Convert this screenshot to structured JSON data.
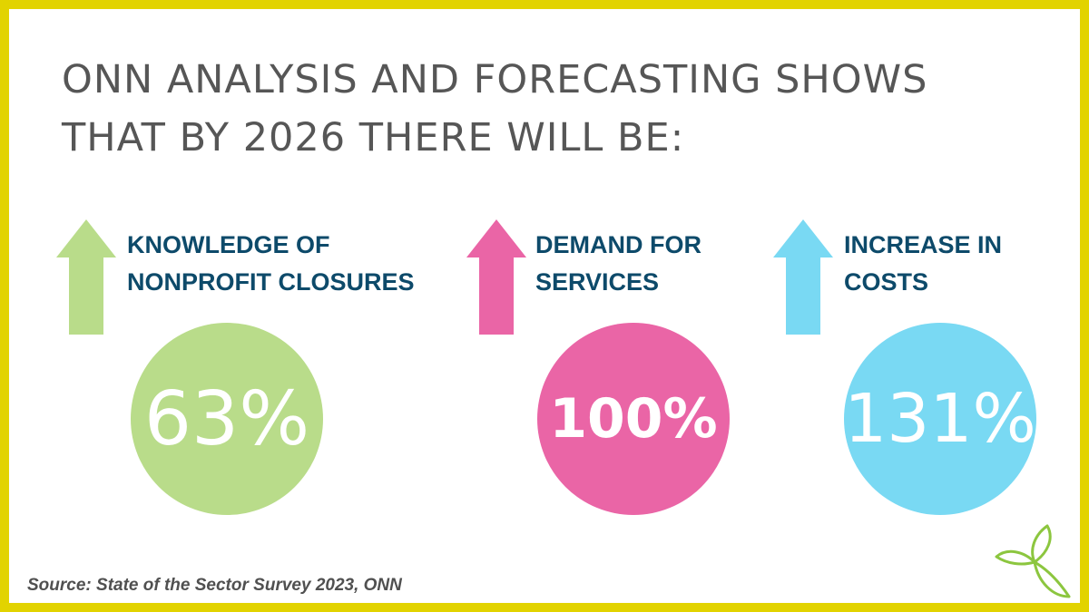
{
  "headline": {
    "line1": "ONN ANALYSIS AND FORECASTING SHOWS",
    "line2": "THAT BY 2026 THERE WILL BE:"
  },
  "stats": [
    {
      "label_line1": "KNOWLEDGE OF",
      "label_line2": "NONPROFIT CLOSURES",
      "value": "63%",
      "color": "#b9dc8a"
    },
    {
      "label_line1": "DEMAND FOR",
      "label_line2": "SERVICES",
      "value": "100%",
      "color": "#ea65a6"
    },
    {
      "label_line1": "INCREASE IN",
      "label_line2": "COSTS",
      "value": "131%",
      "color": "#79d9f3"
    }
  ],
  "source": "Source: State of the Sector Survey 2023, ONN",
  "colors": {
    "border": "#e2d300",
    "headline": "#565656",
    "label": "#0d4a6a",
    "logo": "#8cc63f"
  }
}
